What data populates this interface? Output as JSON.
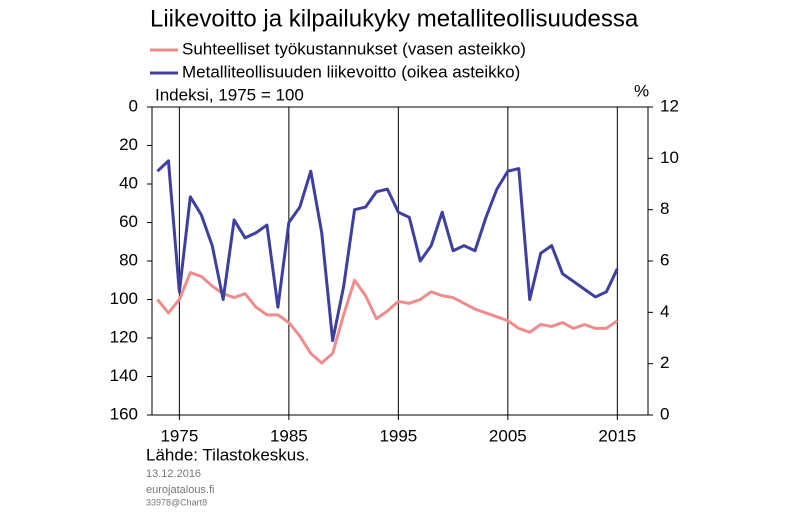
{
  "chart_data": {
    "type": "line",
    "title": "Liikevoitto ja kilpailukyky metalliteollisuudessa",
    "y_label": "Indeksi, 1975 = 100",
    "y2_label": "%",
    "source": "Lähde: Tilastokeskus.",
    "date": "13.12.2016",
    "site": "eurojatalous.fi",
    "code": "33978@Chart8",
    "x": [
      1973,
      1974,
      1975,
      1976,
      1977,
      1978,
      1979,
      1980,
      1981,
      1982,
      1983,
      1984,
      1985,
      1986,
      1987,
      1988,
      1989,
      1990,
      1991,
      1992,
      1993,
      1994,
      1995,
      1996,
      1997,
      1998,
      1999,
      2000,
      2001,
      2002,
      2003,
      2004,
      2005,
      2006,
      2007,
      2008,
      2009,
      2010,
      2011,
      2012,
      2013,
      2014,
      2015
    ],
    "xlim": [
      1972.5,
      2017.8
    ],
    "xticks": [
      1975,
      1985,
      1995,
      2005,
      2015
    ],
    "ylim": [
      0,
      160
    ],
    "y_inverted": true,
    "yticks": [
      0,
      20,
      40,
      60,
      80,
      100,
      120,
      140,
      160
    ],
    "y2lim": [
      0,
      12
    ],
    "y2ticks": [
      0,
      2,
      4,
      6,
      8,
      10,
      12
    ],
    "grid": true,
    "series": [
      {
        "name": "Suhteelliset työkustannukset (vasen asteikko)",
        "color": "#f08c8c",
        "values": [
          100,
          107,
          100,
          86,
          88,
          93,
          97,
          99,
          97,
          104,
          108,
          108,
          112,
          119,
          128,
          133,
          128,
          108,
          90,
          98,
          110,
          106,
          101,
          102,
          100,
          96,
          98,
          99,
          102,
          105,
          107,
          109,
          111,
          115,
          117,
          113,
          114,
          112,
          115,
          113,
          115,
          115,
          111
        ]
      },
      {
        "name": "Metalliteollisuuden liikevoitto (oikea asteikko)",
        "color": "#3f3f9f",
        "axis": "y2",
        "values": [
          9.5,
          9.9,
          4.8,
          8.5,
          7.8,
          6.6,
          4.5,
          7.6,
          6.9,
          7.1,
          7.4,
          4.2,
          7.5,
          8.1,
          9.5,
          7.1,
          2.9,
          5.0,
          8.0,
          8.1,
          8.7,
          8.8,
          7.9,
          7.7,
          6.0,
          6.6,
          7.9,
          6.4,
          6.6,
          6.4,
          7.7,
          8.8,
          9.5,
          9.6,
          4.5,
          6.3,
          6.6,
          5.5,
          5.2,
          4.9,
          4.6,
          4.8,
          5.7
        ]
      }
    ]
  }
}
